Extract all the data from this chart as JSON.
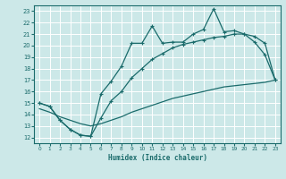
{
  "xlabel": "Humidex (Indice chaleur)",
  "bg_color": "#cce8e8",
  "grid_color": "#ffffff",
  "line_color": "#1a6b6b",
  "xlim": [
    -0.5,
    23.5
  ],
  "ylim": [
    11.5,
    23.5
  ],
  "yticks": [
    12,
    13,
    14,
    15,
    16,
    17,
    18,
    19,
    20,
    21,
    22,
    23
  ],
  "xticks": [
    0,
    1,
    2,
    3,
    4,
    5,
    6,
    7,
    8,
    9,
    10,
    11,
    12,
    13,
    14,
    15,
    16,
    17,
    18,
    19,
    20,
    21,
    22,
    23
  ],
  "line1_x": [
    0,
    1,
    2,
    3,
    4,
    5,
    6,
    7,
    8,
    9,
    10,
    11,
    12,
    13,
    14,
    15,
    16,
    17,
    18,
    19,
    20,
    21,
    22,
    23
  ],
  "line1_y": [
    15.0,
    14.7,
    13.5,
    12.7,
    12.2,
    12.1,
    15.8,
    16.9,
    18.2,
    20.2,
    20.2,
    21.7,
    20.2,
    20.3,
    20.3,
    21.0,
    21.4,
    23.2,
    21.2,
    21.3,
    21.0,
    20.3,
    19.2,
    17.0
  ],
  "line2_x": [
    0,
    1,
    2,
    3,
    4,
    5,
    6,
    7,
    8,
    9,
    10,
    11,
    12,
    13,
    14,
    15,
    16,
    17,
    18,
    19,
    20,
    21,
    22,
    23
  ],
  "line2_y": [
    15.0,
    14.7,
    13.5,
    12.7,
    12.2,
    12.1,
    13.7,
    15.2,
    16.0,
    17.2,
    18.0,
    18.8,
    19.3,
    19.8,
    20.1,
    20.3,
    20.5,
    20.7,
    20.8,
    21.0,
    21.0,
    20.8,
    20.2,
    17.0
  ],
  "line3_x": [
    0,
    1,
    2,
    3,
    4,
    5,
    6,
    7,
    8,
    9,
    10,
    11,
    12,
    13,
    14,
    15,
    16,
    17,
    18,
    19,
    20,
    21,
    22,
    23
  ],
  "line3_y": [
    14.5,
    14.2,
    13.8,
    13.5,
    13.2,
    13.0,
    13.2,
    13.5,
    13.8,
    14.2,
    14.5,
    14.8,
    15.1,
    15.4,
    15.6,
    15.8,
    16.0,
    16.2,
    16.4,
    16.5,
    16.6,
    16.7,
    16.8,
    17.0
  ]
}
